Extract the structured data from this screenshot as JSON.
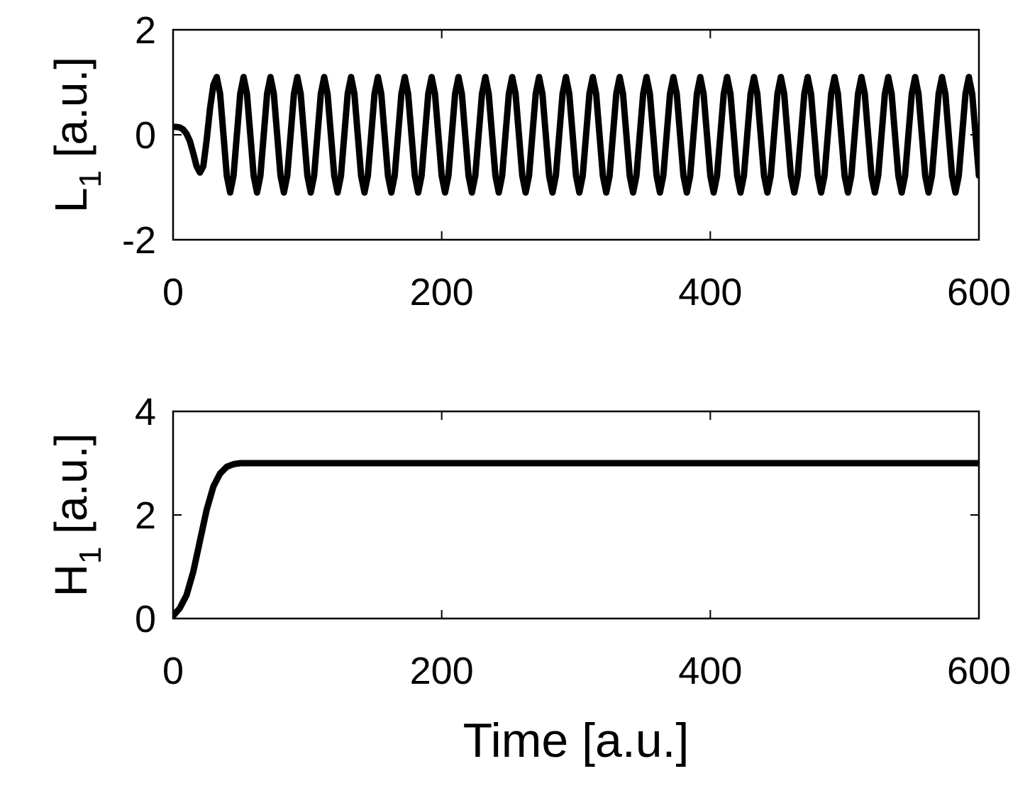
{
  "chart_data": [
    {
      "type": "line",
      "color": "#000000",
      "ylabel": [
        "L",
        "1",
        " [a.u.]"
      ],
      "xlim": [
        0,
        600
      ],
      "xticks": [
        0,
        200,
        400,
        600
      ],
      "ylim": [
        -2,
        2
      ],
      "yticks": [
        -2,
        0,
        2
      ],
      "x": [
        0,
        2.5,
        5,
        7.5,
        10,
        12.5,
        15,
        17.5,
        20,
        22.5,
        25,
        27.5,
        30,
        32.5,
        35,
        37.5,
        40,
        42.5,
        45,
        47.5,
        50,
        52.5,
        55,
        57.5,
        60,
        62.5,
        65,
        67.5,
        70,
        72.5,
        75,
        77.5,
        80,
        82.5,
        85,
        87.5,
        90,
        92.5,
        95,
        97.5,
        100,
        102.5,
        105,
        107.5,
        110,
        112.5,
        115,
        117.5,
        120,
        122.5,
        125,
        127.5,
        130,
        132.5,
        135,
        137.5,
        140,
        142.5,
        145,
        147.5,
        150,
        152.5,
        155,
        157.5,
        160,
        162.5,
        165,
        167.5,
        170,
        172.5,
        175,
        177.5,
        180,
        182.5,
        185,
        187.5,
        190,
        192.5,
        195,
        197.5,
        200,
        202.5,
        205,
        207.5,
        210,
        212.5,
        215,
        217.5,
        220,
        222.5,
        225,
        227.5,
        230,
        232.5,
        235,
        237.5,
        240,
        242.5,
        245,
        247.5,
        250,
        252.5,
        255,
        257.5,
        260,
        262.5,
        265,
        267.5,
        270,
        272.5,
        275,
        277.5,
        280,
        282.5,
        285,
        287.5,
        290,
        292.5,
        295,
        297.5,
        300,
        302.5,
        305,
        307.5,
        310,
        312.5,
        315,
        317.5,
        320,
        322.5,
        325,
        327.5,
        330,
        332.5,
        335,
        337.5,
        340,
        342.5,
        345,
        347.5,
        350,
        352.5,
        355,
        357.5,
        360,
        362.5,
        365,
        367.5,
        370,
        372.5,
        375,
        377.5,
        380,
        382.5,
        385,
        387.5,
        390,
        392.5,
        395,
        397.5,
        400,
        402.5,
        405,
        407.5,
        410,
        412.5,
        415,
        417.5,
        420,
        422.5,
        425,
        427.5,
        430,
        432.5,
        435,
        437.5,
        440,
        442.5,
        445,
        447.5,
        450,
        452.5,
        455,
        457.5,
        460,
        462.5,
        465,
        467.5,
        470,
        472.5,
        475,
        477.5,
        480,
        482.5,
        485,
        487.5,
        490,
        492.5,
        495,
        497.5,
        500,
        502.5,
        505,
        507.5,
        510,
        512.5,
        515,
        517.5,
        520,
        522.5,
        525,
        527.5,
        530,
        532.5,
        535,
        537.5,
        540,
        542.5,
        545,
        547.5,
        550,
        552.5,
        555,
        557.5,
        560,
        562.5,
        565,
        567.5,
        570,
        572.5,
        575,
        577.5,
        580,
        582.5,
        585,
        587.5,
        590,
        592.5,
        595,
        597.5,
        600
      ],
      "values": [
        0.15,
        0.15,
        0.14,
        0.1,
        0.02,
        -0.12,
        -0.35,
        -0.6,
        -0.72,
        -0.6,
        -0.1,
        0.5,
        0.95,
        1.1,
        0.78,
        0,
        -0.78,
        -1.1,
        -0.78,
        0,
        0.78,
        1.1,
        0.78,
        0,
        -0.78,
        -1.1,
        -0.78,
        0,
        0.78,
        1.1,
        0.78,
        0,
        -0.78,
        -1.1,
        -0.78,
        0,
        0.78,
        1.1,
        0.78,
        0,
        -0.78,
        -1.1,
        -0.78,
        0,
        0.78,
        1.1,
        0.78,
        0,
        -0.78,
        -1.1,
        -0.78,
        0,
        0.78,
        1.1,
        0.78,
        0,
        -0.78,
        -1.1,
        -0.78,
        0,
        0.78,
        1.1,
        0.78,
        0,
        -0.78,
        -1.1,
        -0.78,
        0,
        0.78,
        1.1,
        0.78,
        0,
        -0.78,
        -1.1,
        -0.78,
        0,
        0.78,
        1.1,
        0.78,
        0,
        -0.78,
        -1.1,
        -0.78,
        0,
        0.78,
        1.1,
        0.78,
        0,
        -0.78,
        -1.1,
        -0.78,
        0,
        0.78,
        1.1,
        0.78,
        0,
        -0.78,
        -1.1,
        -0.78,
        0,
        0.78,
        1.1,
        0.78,
        0,
        -0.78,
        -1.1,
        -0.78,
        0,
        0.78,
        1.1,
        0.78,
        0,
        -0.78,
        -1.1,
        -0.78,
        0,
        0.78,
        1.1,
        0.78,
        0,
        -0.78,
        -1.1,
        -0.78,
        0,
        0.78,
        1.1,
        0.78,
        0,
        -0.78,
        -1.1,
        -0.78,
        0,
        0.78,
        1.1,
        0.78,
        0,
        -0.78,
        -1.1,
        -0.78,
        0,
        0.78,
        1.1,
        0.78,
        0,
        -0.78,
        -1.1,
        -0.78,
        0,
        0.78,
        1.1,
        0.78,
        0,
        -0.78,
        -1.1,
        -0.78,
        0,
        0.78,
        1.1,
        0.78,
        0,
        -0.78,
        -1.1,
        -0.78,
        0,
        0.78,
        1.1,
        0.78,
        0,
        -0.78,
        -1.1,
        -0.78,
        0,
        0.78,
        1.1,
        0.78,
        0,
        -0.78,
        -1.1,
        -0.78,
        0,
        0.78,
        1.1,
        0.78,
        0,
        -0.78,
        -1.1,
        -0.78,
        0,
        0.78,
        1.1,
        0.78,
        0,
        -0.78,
        -1.1,
        -0.78,
        0,
        0.78,
        1.1,
        0.78,
        0,
        -0.78,
        -1.1,
        -0.78,
        0,
        0.78,
        1.1,
        0.78,
        0,
        -0.78,
        -1.1,
        -0.78,
        0,
        0.78,
        1.1,
        0.78,
        0,
        -0.78,
        -1.1,
        -0.78,
        0,
        0.78,
        1.1,
        0.78,
        0,
        -0.78,
        -1.1,
        -0.78,
        0,
        0.78,
        1.1,
        0.78,
        0,
        -0.78,
        -1.1,
        -0.78,
        0,
        0.78,
        1.1,
        0.78,
        0,
        -0.78
      ]
    },
    {
      "type": "line",
      "color": "#000000",
      "ylabel": [
        "H",
        "1",
        " [a.u.]"
      ],
      "xlabel": "Time [a.u.]",
      "xlim": [
        0,
        600
      ],
      "xticks": [
        0,
        200,
        400,
        600
      ],
      "ylim": [
        0,
        4
      ],
      "yticks": [
        0,
        2,
        4
      ],
      "x": [
        0,
        5,
        10,
        15,
        20,
        25,
        30,
        35,
        40,
        45,
        50,
        60,
        100,
        200,
        300,
        400,
        500,
        600
      ],
      "values": [
        0.05,
        0.2,
        0.45,
        0.9,
        1.5,
        2.1,
        2.55,
        2.8,
        2.93,
        2.98,
        3.0,
        3.0,
        3.0,
        3.0,
        3.0,
        3.0,
        3.0,
        3.0
      ]
    }
  ]
}
